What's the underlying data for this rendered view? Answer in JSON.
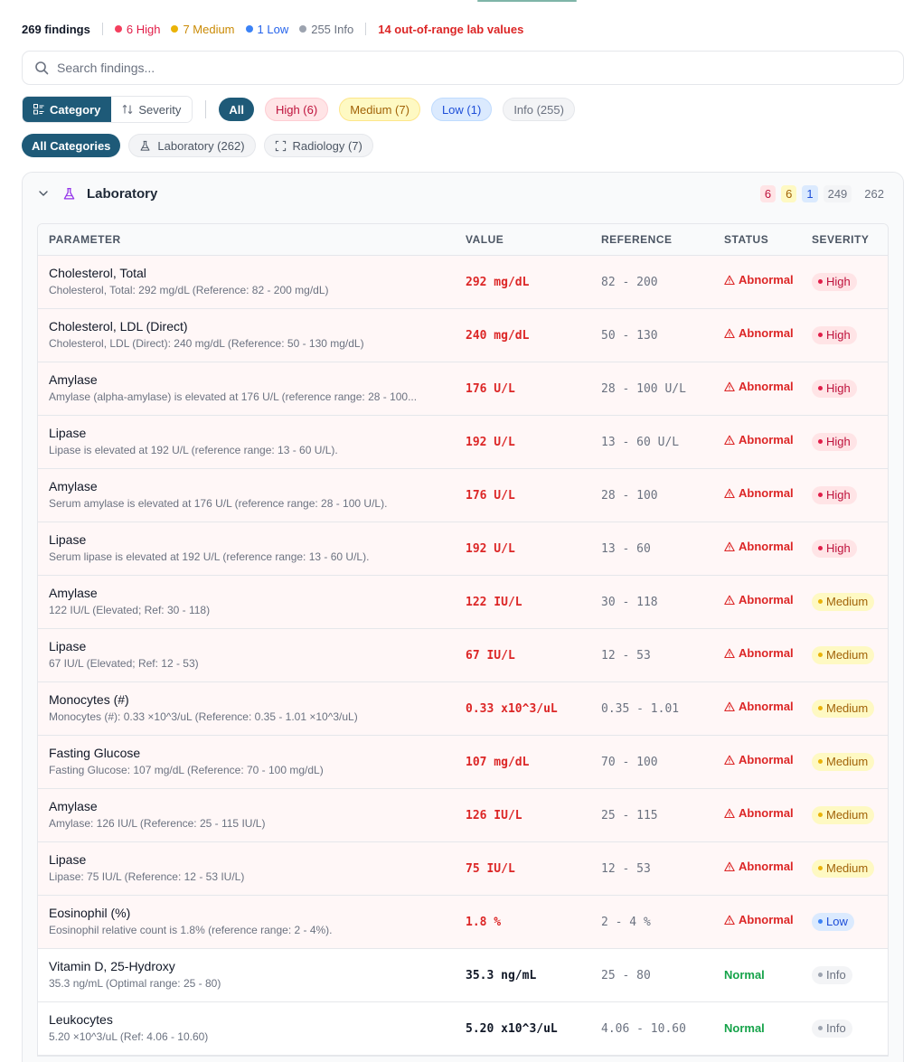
{
  "summary": {
    "total": "269 findings",
    "high": "6 High",
    "medium": "7 Medium",
    "low": "1 Low",
    "info": "255 Info",
    "out_of_range": "14 out-of-range lab values"
  },
  "search": {
    "placeholder": "Search findings..."
  },
  "group_toggle": {
    "category": "Category",
    "severity": "Severity",
    "selected": "Category"
  },
  "severity_filters": {
    "all": "All",
    "high": "High (6)",
    "medium": "Medium (7)",
    "low": "Low (1)",
    "info": "Info (255)",
    "selected": "All"
  },
  "category_filters": {
    "all": "All Categories",
    "laboratory": "Laboratory (262)",
    "radiology": "Radiology (7)",
    "selected": "All Categories"
  },
  "group": {
    "title": "Laboratory",
    "expanded": true,
    "counts": {
      "high": "6",
      "medium": "6",
      "low": "1",
      "info": "249",
      "total": "262"
    }
  },
  "table": {
    "headers": {
      "parameter": "PARAMETER",
      "value": "VALUE",
      "reference": "REFERENCE",
      "status": "STATUS",
      "severity": "SEVERITY"
    },
    "rows": [
      {
        "name": "Cholesterol, Total",
        "desc": "Cholesterol, Total: 292 mg/dL (Reference: 82 - 200 mg/dL)",
        "value": "292 mg/dL",
        "ref": "82 - 200",
        "status": "Abnormal",
        "severity": "High"
      },
      {
        "name": "Cholesterol, LDL (Direct)",
        "desc": "Cholesterol, LDL (Direct): 240 mg/dL (Reference: 50 - 130 mg/dL)",
        "value": "240 mg/dL",
        "ref": "50 - 130",
        "status": "Abnormal",
        "severity": "High"
      },
      {
        "name": "Amylase",
        "desc": "Amylase (alpha-amylase) is elevated at 176 U/L (reference range: 28 - 100...",
        "value": "176 U/L",
        "ref": "28 - 100 U/L",
        "status": "Abnormal",
        "severity": "High"
      },
      {
        "name": "Lipase",
        "desc": "Lipase is elevated at 192 U/L (reference range: 13 - 60 U/L).",
        "value": "192 U/L",
        "ref": "13 - 60 U/L",
        "status": "Abnormal",
        "severity": "High"
      },
      {
        "name": "Amylase",
        "desc": "Serum amylase is elevated at 176 U/L (reference range: 28 - 100 U/L).",
        "value": "176 U/L",
        "ref": "28 - 100",
        "status": "Abnormal",
        "severity": "High"
      },
      {
        "name": "Lipase",
        "desc": "Serum lipase is elevated at 192 U/L (reference range: 13 - 60 U/L).",
        "value": "192 U/L",
        "ref": "13 - 60",
        "status": "Abnormal",
        "severity": "High"
      },
      {
        "name": "Amylase",
        "desc": "122 IU/L (Elevated; Ref: 30 - 118)",
        "value": "122 IU/L",
        "ref": "30 - 118",
        "status": "Abnormal",
        "severity": "Medium"
      },
      {
        "name": "Lipase",
        "desc": "67 IU/L (Elevated; Ref: 12 - 53)",
        "value": "67 IU/L",
        "ref": "12 - 53",
        "status": "Abnormal",
        "severity": "Medium"
      },
      {
        "name": "Monocytes (#)",
        "desc": "Monocytes (#): 0.33 ×10^3/uL (Reference: 0.35 - 1.01 ×10^3/uL)",
        "value": "0.33 x10^3/uL",
        "ref": "0.35 - 1.01",
        "status": "Abnormal",
        "severity": "Medium"
      },
      {
        "name": "Fasting Glucose",
        "desc": "Fasting Glucose: 107 mg/dL (Reference: 70 - 100 mg/dL)",
        "value": "107 mg/dL",
        "ref": "70 - 100",
        "status": "Abnormal",
        "severity": "Medium"
      },
      {
        "name": "Amylase",
        "desc": "Amylase: 126 IU/L (Reference: 25 - 115 IU/L)",
        "value": "126 IU/L",
        "ref": "25 - 115",
        "status": "Abnormal",
        "severity": "Medium"
      },
      {
        "name": "Lipase",
        "desc": "Lipase: 75 IU/L (Reference: 12 - 53 IU/L)",
        "value": "75 IU/L",
        "ref": "12 - 53",
        "status": "Abnormal",
        "severity": "Medium"
      },
      {
        "name": "Eosinophil (%)",
        "desc": "Eosinophil relative count is 1.8% (reference range: 2 - 4%).",
        "value": "1.8 %",
        "ref": "2 - 4 %",
        "status": "Abnormal",
        "severity": "Low"
      },
      {
        "name": "Vitamin D, 25-Hydroxy",
        "desc": "35.3 ng/mL (Optimal range: 25 - 80)",
        "value": "35.3 ng/mL",
        "ref": "25 - 80",
        "status": "Normal",
        "severity": "Info"
      },
      {
        "name": "Leukocytes",
        "desc": "5.20 ×10^3/uL (Ref: 4.06 - 10.60)",
        "value": "5.20 x10^3/uL",
        "ref": "4.06 - 10.60",
        "status": "Normal",
        "severity": "Info"
      }
    ]
  },
  "colors": {
    "accent": "#1e5a78",
    "high": "#e11d48",
    "medium": "#eab308",
    "low": "#3b82f6",
    "info": "#9ca3af",
    "abnormal": "#dc2626",
    "normal": "#16a34a"
  }
}
